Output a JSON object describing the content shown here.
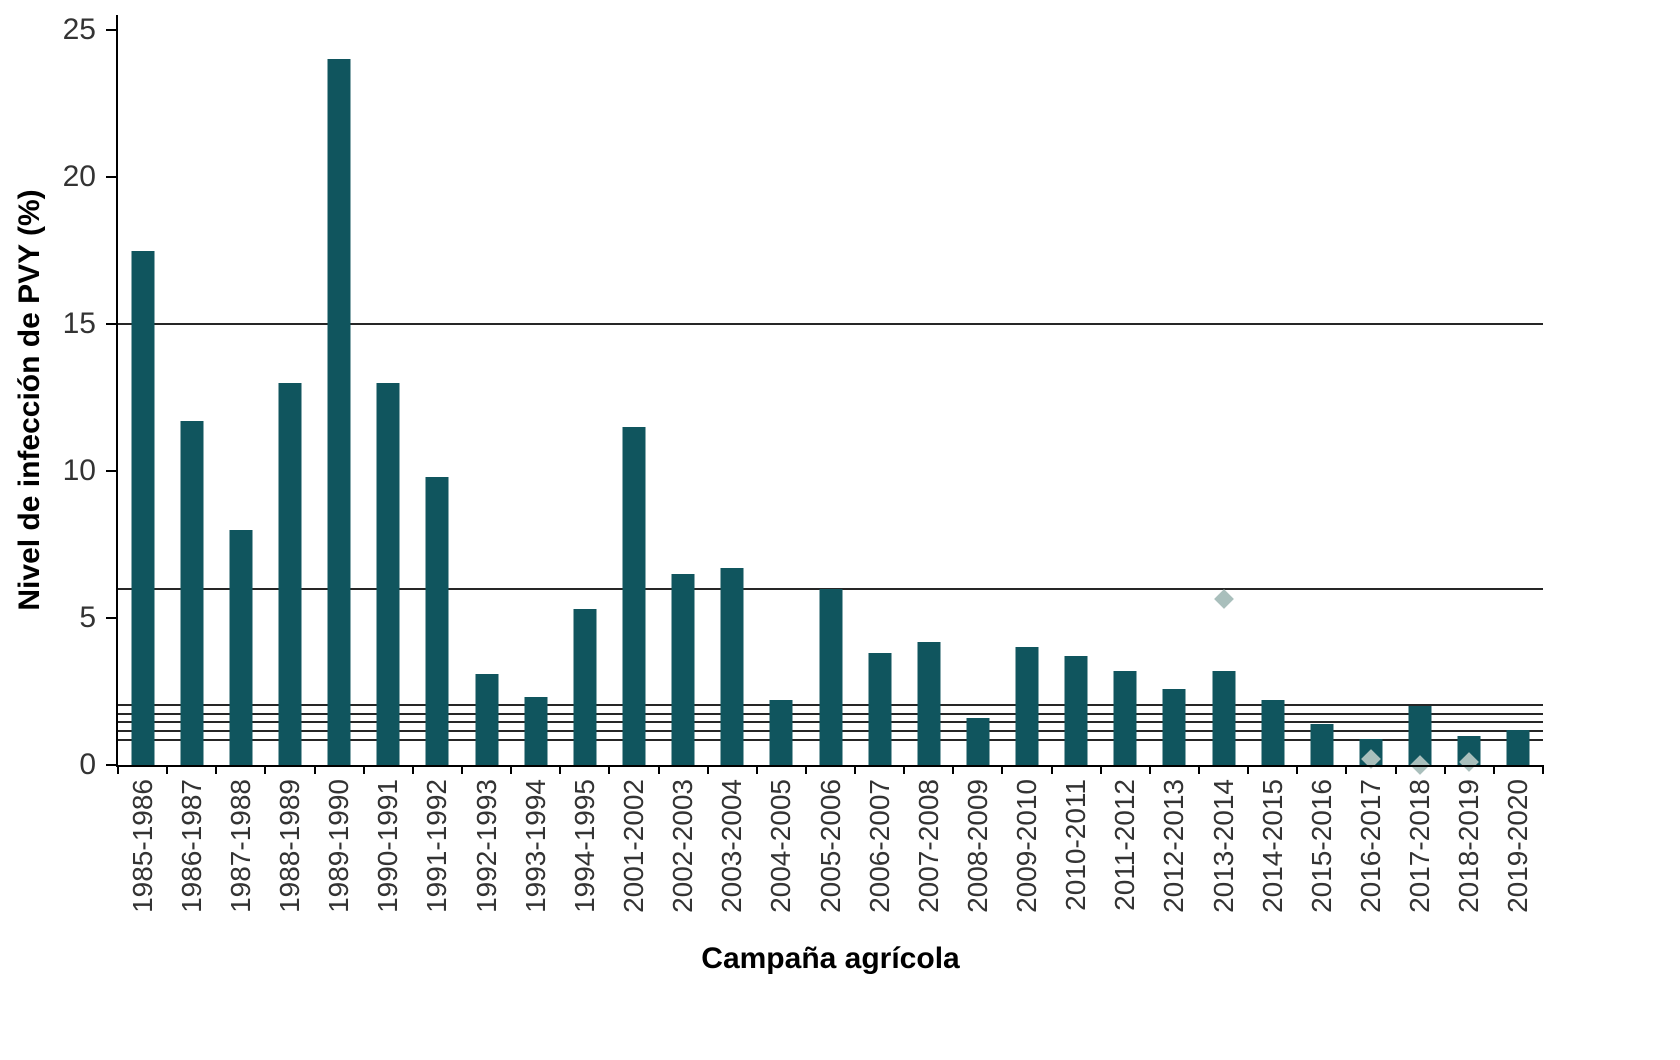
{
  "chart_data": {
    "type": "bar",
    "title": "",
    "xlabel": "Campaña agrícola",
    "ylabel": "Nivel de infección de PVY (%)",
    "ylim": [
      0,
      25
    ],
    "yticks": [
      0,
      5,
      10,
      15,
      20,
      25
    ],
    "grid": "off",
    "legend": "none",
    "categories": [
      "1985-1986",
      "1986-1987",
      "1987-1988",
      "1988-1989",
      "1989-1990",
      "1990-1991",
      "1991-1992",
      "1992-1993",
      "1993-1994",
      "1994-1995",
      "2001-2002",
      "2002-2003",
      "2003-2004",
      "2004-2005",
      "2005-2006",
      "2006-2007",
      "2007-2008",
      "2008-2009",
      "2009-2010",
      "2010-2011",
      "2011-2012",
      "2012-2013",
      "2013-2014",
      "2014-2015",
      "2015-2016",
      "2016-2017",
      "2017-2018",
      "2018-2019",
      "2019-2020"
    ],
    "series": [
      {
        "name": "Nivel de infección de PVY",
        "type": "bar",
        "values": [
          17.5,
          11.7,
          8.0,
          13.0,
          24.0,
          13.0,
          9.8,
          3.1,
          2.3,
          5.3,
          11.5,
          6.5,
          6.7,
          2.2,
          6.0,
          3.8,
          4.2,
          1.6,
          4.0,
          3.7,
          3.2,
          2.6,
          3.2,
          2.2,
          1.4,
          0.9,
          2.0,
          1.0,
          1.2
        ]
      }
    ],
    "reference_lines": [
      15,
      6,
      2.05,
      1.75,
      1.45,
      1.15,
      0.85
    ],
    "markers": [
      {
        "category": "2013-2014",
        "value": 5.65
      },
      {
        "category": "2016-2017",
        "value": 0.2
      },
      {
        "category": "2017-2018",
        "value": 0.0
      },
      {
        "category": "2018-2019",
        "value": 0.1
      }
    ],
    "colors": {
      "bar": "#10555e",
      "marker": "#a9bfbc",
      "reference_line": "#262626",
      "axis": "#000000",
      "tick_text": "#333333",
      "axis_title_text": "#000000"
    }
  }
}
